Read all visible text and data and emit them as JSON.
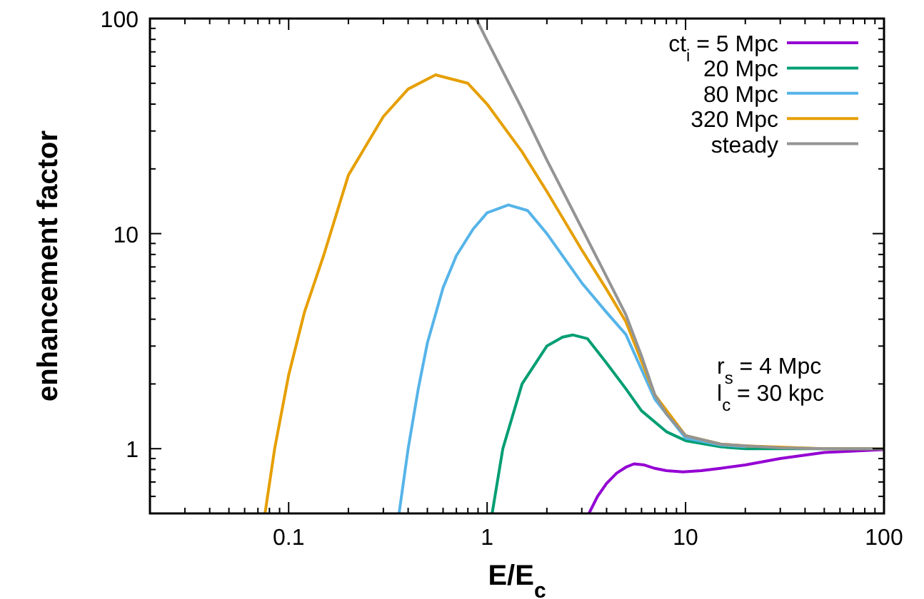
{
  "chart_data": {
    "type": "line",
    "xlabel": "E/E$_{c}$",
    "ylabel": "enhancement factor",
    "log": "xy",
    "legend": "top right",
    "grid": false,
    "xlim": [
      0.02,
      100
    ],
    "ylim": [
      0.5,
      100
    ],
    "xticks": [
      {
        "value": 0.02,
        "label": null
      },
      {
        "value": 0.03,
        "label": null
      },
      {
        "value": 0.04,
        "label": null
      },
      {
        "value": 0.05,
        "label": null
      },
      {
        "value": 0.06,
        "label": null
      },
      {
        "value": 0.07,
        "label": null
      },
      {
        "value": 0.08,
        "label": null
      },
      {
        "value": 0.09,
        "label": null
      },
      0.1,
      {
        "value": 0.2,
        "label": null
      },
      {
        "value": 0.3,
        "label": null
      },
      {
        "value": 0.4,
        "label": null
      },
      {
        "value": 0.5,
        "label": null
      },
      {
        "value": 0.6,
        "label": null
      },
      {
        "value": 0.7,
        "label": null
      },
      {
        "value": 0.8,
        "label": null
      },
      {
        "value": 0.9,
        "label": null
      },
      1,
      {
        "value": 2,
        "label": null
      },
      {
        "value": 3,
        "label": null
      },
      {
        "value": 4,
        "label": null
      },
      {
        "value": 5,
        "label": null
      },
      {
        "value": 6,
        "label": null
      },
      {
        "value": 7,
        "label": null
      },
      {
        "value": 8,
        "label": null
      },
      {
        "value": 9,
        "label": null
      },
      10,
      {
        "value": 20,
        "label": null
      },
      {
        "value": 30,
        "label": null
      },
      {
        "value": 40,
        "label": null
      },
      {
        "value": 50,
        "label": null
      },
      {
        "value": 60,
        "label": null
      },
      {
        "value": 70,
        "label": null
      },
      {
        "value": 80,
        "label": null
      },
      {
        "value": 90,
        "label": null
      },
      100
    ],
    "yticks": [
      {
        "value": 0.5,
        "label": null
      },
      {
        "value": 0.6,
        "label": null
      },
      {
        "value": 0.7,
        "label": null
      },
      {
        "value": 0.8,
        "label": null
      },
      {
        "value": 0.9,
        "label": null
      },
      1,
      {
        "value": 2,
        "label": null
      },
      {
        "value": 3,
        "label": null
      },
      {
        "value": 4,
        "label": null
      },
      {
        "value": 5,
        "label": null
      },
      {
        "value": 6,
        "label": null
      },
      {
        "value": 7,
        "label": null
      },
      {
        "value": 8,
        "label": null
      },
      {
        "value": 9,
        "label": null
      },
      10,
      {
        "value": 20,
        "label": null
      },
      {
        "value": 30,
        "label": null
      },
      {
        "value": 40,
        "label": null
      },
      {
        "value": 50,
        "label": null
      },
      {
        "value": 60,
        "label": null
      },
      {
        "value": 70,
        "label": null
      },
      {
        "value": 80,
        "label": null
      },
      {
        "value": 90,
        "label": null
      },
      100
    ],
    "annotations": [
      "r$_{s}$ = 4 Mpc",
      "l$_{c}$ = 30 kpc"
    ],
    "series": [
      {
        "name": "ct$_{i}$ = 5 Mpc",
        "color": "#9400d3",
        "x": [
          3.26,
          3.6,
          4,
          4.5,
          5,
          5.5,
          6.2,
          7,
          8,
          9.7,
          12,
          15,
          20,
          30,
          50,
          100
        ],
        "values": [
          0.5,
          0.6,
          0.69,
          0.77,
          0.82,
          0.85,
          0.84,
          0.81,
          0.79,
          0.78,
          0.79,
          0.81,
          0.84,
          0.9,
          0.96,
          0.99
        ]
      },
      {
        "name": "20 Mpc",
        "color": "#009e73",
        "x": [
          1.06,
          1.2,
          1.5,
          2,
          2.4,
          2.7,
          3.2,
          4,
          5,
          6,
          8,
          10,
          15,
          20,
          100
        ],
        "values": [
          0.5,
          1.0,
          2.0,
          3.0,
          3.3,
          3.38,
          3.25,
          2.5,
          1.9,
          1.5,
          1.2,
          1.09,
          1.02,
          1.0,
          1.0
        ]
      },
      {
        "name": "80 Mpc",
        "color": "#56b4e9",
        "x": [
          0.36,
          0.4,
          0.45,
          0.5,
          0.6,
          0.7,
          0.85,
          1,
          1.28,
          1.6,
          2,
          3,
          4,
          5,
          7,
          10,
          15,
          20
        ],
        "values": [
          0.5,
          1.0,
          1.9,
          3.1,
          5.6,
          7.9,
          10.5,
          12.5,
          13.6,
          12.8,
          10,
          5.9,
          4.3,
          3.4,
          1.7,
          1.12,
          1.04,
          1.02
        ]
      },
      {
        "name": "320 Mpc",
        "color": "#e69f00",
        "x": [
          0.076,
          0.085,
          0.1,
          0.12,
          0.15,
          0.2,
          0.3,
          0.4,
          0.55,
          0.8,
          1,
          1.5,
          2,
          3,
          4,
          5,
          7,
          10,
          15,
          20,
          50,
          100
        ],
        "values": [
          0.5,
          1.0,
          2.2,
          4.3,
          7.9,
          18.7,
          35,
          47,
          54.7,
          50,
          40,
          24,
          15.7,
          8.4,
          5.5,
          3.9,
          1.78,
          1.15,
          1.05,
          1.03,
          1.0,
          1.0
        ]
      },
      {
        "name": "steady",
        "color": "#949494",
        "x": [
          0.88,
          1,
          1.5,
          2,
          3,
          4,
          5,
          6,
          7,
          8,
          10,
          15,
          20,
          30,
          50,
          100
        ],
        "values": [
          100,
          79,
          38,
          22,
          10.6,
          6.3,
          4.2,
          2.7,
          1.78,
          1.45,
          1.15,
          1.05,
          1.03,
          1.01,
          1.0,
          1.0
        ]
      }
    ]
  }
}
